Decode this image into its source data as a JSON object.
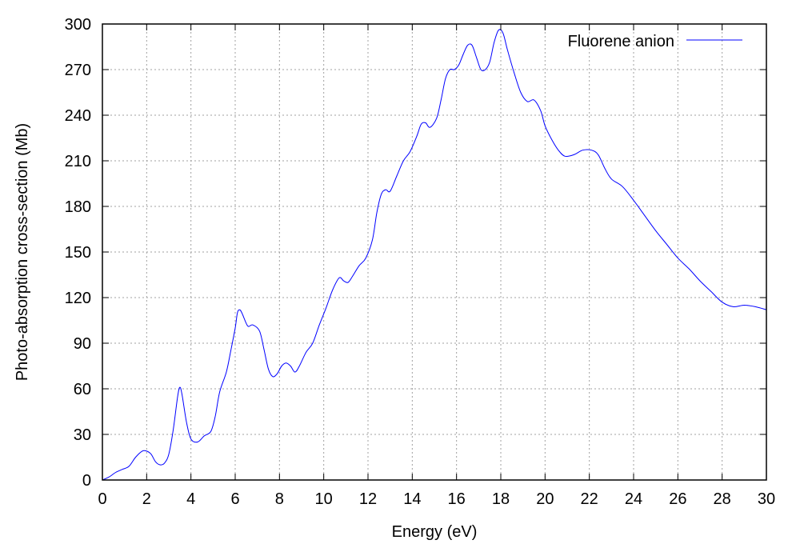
{
  "chart_data": {
    "type": "line",
    "xlabel": "Energy (eV)",
    "ylabel": "Photo-absorption cross-section (Mb)",
    "xlim": [
      0,
      30
    ],
    "ylim": [
      0,
      300
    ],
    "xticks": [
      0,
      2,
      4,
      6,
      8,
      10,
      12,
      14,
      16,
      18,
      20,
      22,
      24,
      26,
      28,
      30
    ],
    "yticks": [
      0,
      30,
      60,
      90,
      120,
      150,
      180,
      210,
      240,
      270,
      300
    ],
    "grid": true,
    "legend_position": "top-right",
    "series": [
      {
        "name": "Fluorene anion",
        "color": "#0000ff",
        "x": [
          0,
          0.3,
          0.6,
          0.9,
          1.2,
          1.5,
          1.8,
          2.0,
          2.2,
          2.4,
          2.6,
          2.8,
          3.0,
          3.2,
          3.4,
          3.5,
          3.6,
          3.8,
          4.0,
          4.3,
          4.6,
          4.9,
          5.1,
          5.3,
          5.6,
          5.8,
          6.0,
          6.1,
          6.2,
          6.3,
          6.5,
          6.6,
          6.8,
          7.1,
          7.3,
          7.5,
          7.7,
          7.9,
          8.1,
          8.3,
          8.5,
          8.7,
          8.9,
          9.2,
          9.5,
          9.8,
          10.1,
          10.4,
          10.7,
          10.9,
          11.1,
          11.3,
          11.6,
          11.9,
          12.2,
          12.4,
          12.6,
          12.8,
          13.0,
          13.3,
          13.6,
          13.9,
          14.2,
          14.4,
          14.6,
          14.8,
          15.1,
          15.3,
          15.5,
          15.7,
          15.9,
          16.1,
          16.3,
          16.5,
          16.7,
          16.9,
          17.1,
          17.3,
          17.5,
          17.7,
          17.9,
          18.1,
          18.3,
          18.6,
          18.9,
          19.2,
          19.5,
          19.8,
          20.0,
          20.3,
          20.6,
          20.9,
          21.3,
          21.7,
          22.1,
          22.4,
          22.7,
          23.0,
          23.5,
          24.0,
          24.5,
          25.0,
          25.5,
          26.0,
          26.5,
          27.0,
          27.5,
          28.0,
          28.5,
          29.0,
          29.5,
          30.0
        ],
        "y": [
          0,
          2,
          5,
          7,
          9,
          15,
          19,
          19,
          17,
          12,
          10,
          11,
          17,
          33,
          55,
          61,
          56,
          38,
          27,
          25,
          29,
          32,
          42,
          58,
          71,
          85,
          100,
          110,
          112,
          110,
          103,
          101,
          102,
          98,
          86,
          73,
          68,
          70,
          75,
          77,
          75,
          71,
          75,
          84,
          90,
          102,
          113,
          125,
          133,
          131,
          130,
          134,
          141,
          146,
          158,
          176,
          188,
          191,
          190,
          200,
          210,
          216,
          226,
          234,
          235,
          232,
          238,
          250,
          264,
          270,
          270,
          273,
          280,
          286,
          286,
          278,
          270,
          270,
          275,
          288,
          296,
          294,
          283,
          268,
          255,
          249,
          250,
          243,
          233,
          224,
          217,
          213,
          214,
          217,
          217,
          214,
          205,
          198,
          193,
          184,
          174,
          164,
          155,
          146,
          139,
          131,
          124,
          117,
          114,
          115,
          114,
          112
        ]
      }
    ]
  }
}
